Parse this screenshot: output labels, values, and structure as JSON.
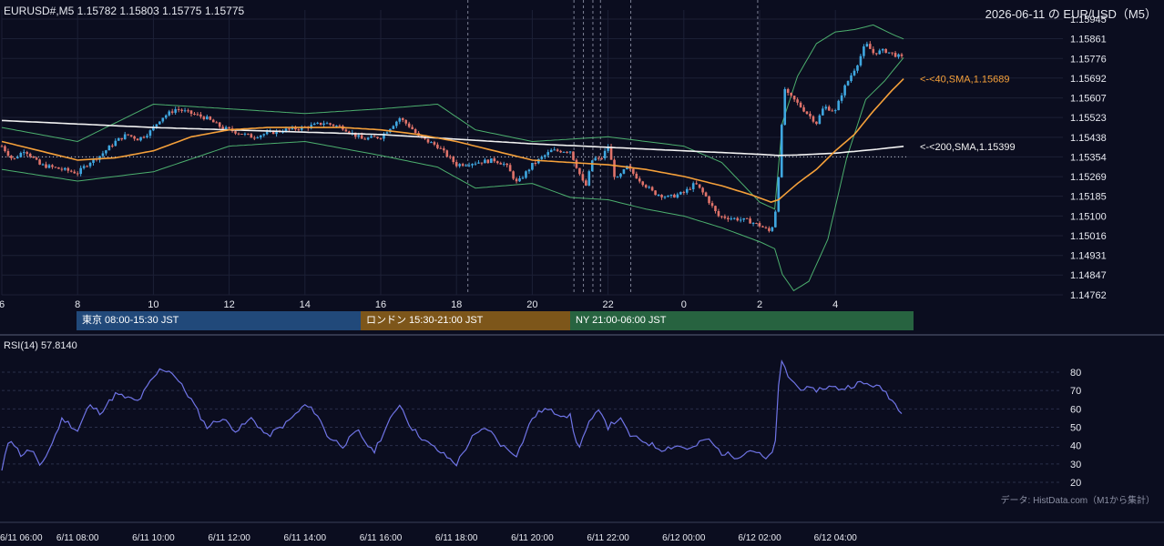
{
  "header": {
    "symbol_line": "EURUSD#,M5 1.15782 1.15803 1.15775 1.15775",
    "date_title": "2026-06-11 の EUR/USD（M5）"
  },
  "sessions": [
    {
      "label": "東京 08:00-15:30 JST",
      "color": "#21497a"
    },
    {
      "label": "ロンドン 15:30-21:00 JST",
      "color": "#7d561a"
    },
    {
      "label": "NY 21:00-06:00 JST",
      "color": "#276340"
    }
  ],
  "rsi_title": "RSI(14) 57.8140",
  "credit": "データ: HistData.com（M1から集計）",
  "colors": {
    "background": "#0b0d1f",
    "bull": "#3fa7e0",
    "bear": "#e0736a",
    "sma40": "#f5a03a",
    "sma200": "#f2f2f2",
    "bollinger": "#4caf6e",
    "rsi": "#6f74e6"
  },
  "chart_data": [
    {
      "type": "candlestick",
      "title": "",
      "ylim": [
        1.14762,
        1.15945
      ],
      "xlim": [
        6.0,
        5.8
      ],
      "y_ticks": [
        "1.15945",
        "1.15861",
        "1.15776",
        "1.15692",
        "1.15607",
        "1.15523",
        "1.15438",
        "1.15354",
        "1.15269",
        "1.15185",
        "1.15100",
        "1.15016",
        "1.14931",
        "1.14847",
        "1.14762"
      ],
      "x_tick_labels": [
        "6",
        "8",
        "10",
        "12",
        "14",
        "16",
        "18",
        "20",
        "22",
        "0",
        "2",
        "4"
      ],
      "reference_level": 1.15354,
      "annotations": [
        {
          "label": "<-<40,SMA,1.15689",
          "value": 1.15689,
          "series": "sma40"
        },
        {
          "label": "<-<200,SMA,1.15399",
          "value": 1.15399,
          "series": "sma200"
        }
      ],
      "anchors": [
        [
          6.0,
          1.154
        ],
        [
          6.3,
          1.1534
        ],
        [
          6.6,
          1.15385
        ],
        [
          7.0,
          1.1532
        ],
        [
          7.3,
          1.1531
        ],
        [
          7.6,
          1.153
        ],
        [
          8.0,
          1.15285
        ],
        [
          8.3,
          1.1533
        ],
        [
          8.6,
          1.1536
        ],
        [
          9.0,
          1.1542
        ],
        [
          9.3,
          1.1545
        ],
        [
          9.6,
          1.1543
        ],
        [
          9.9,
          1.1546
        ],
        [
          10.2,
          1.1552
        ],
        [
          10.6,
          1.1556
        ],
        [
          11.0,
          1.1554
        ],
        [
          11.4,
          1.1552
        ],
        [
          11.8,
          1.1548
        ],
        [
          12.2,
          1.1546
        ],
        [
          12.6,
          1.1544
        ],
        [
          13.0,
          1.15455
        ],
        [
          13.5,
          1.1547
        ],
        [
          14.0,
          1.1548
        ],
        [
          14.5,
          1.155
        ],
        [
          15.0,
          1.1548
        ],
        [
          15.5,
          1.1543
        ],
        [
          16.0,
          1.1544
        ],
        [
          16.5,
          1.1552
        ],
        [
          16.8,
          1.1548
        ],
        [
          17.0,
          1.1544
        ],
        [
          17.5,
          1.154
        ],
        [
          18.0,
          1.1532
        ],
        [
          18.5,
          1.1533
        ],
        [
          19.0,
          1.1534
        ],
        [
          19.3,
          1.1532
        ],
        [
          19.6,
          1.1524
        ],
        [
          20.0,
          1.1532
        ],
        [
          20.5,
          1.1538
        ],
        [
          21.0,
          1.1538
        ],
        [
          21.2,
          1.153
        ],
        [
          21.4,
          1.1522
        ],
        [
          21.6,
          1.1535
        ],
        [
          21.8,
          1.1534
        ],
        [
          22.0,
          1.154
        ],
        [
          22.2,
          1.1525
        ],
        [
          22.5,
          1.1531
        ],
        [
          22.8,
          1.1526
        ],
        [
          23.2,
          1.152
        ],
        [
          23.6,
          1.1518
        ],
        [
          24.0,
          1.152
        ],
        [
          24.3,
          1.1524
        ],
        [
          24.6,
          1.1518
        ],
        [
          24.9,
          1.151
        ],
        [
          25.3,
          1.1509
        ],
        [
          25.7,
          1.1508
        ],
        [
          26.0,
          1.1506
        ],
        [
          26.3,
          1.1503
        ],
        [
          26.45,
          1.1515
        ],
        [
          26.55,
          1.154
        ],
        [
          26.65,
          1.1565
        ],
        [
          26.75,
          1.1562
        ],
        [
          26.9,
          1.156
        ],
        [
          27.2,
          1.1555
        ],
        [
          27.5,
          1.155
        ],
        [
          27.7,
          1.1557
        ],
        [
          28.0,
          1.1555
        ],
        [
          28.2,
          1.1564
        ],
        [
          28.4,
          1.157
        ],
        [
          28.6,
          1.1576
        ],
        [
          28.8,
          1.1584
        ],
        [
          29.0,
          1.158
        ],
        [
          29.3,
          1.1581
        ],
        [
          29.6,
          1.1579
        ],
        [
          29.8,
          1.15775
        ]
      ],
      "sma40_anchors": [
        [
          6.0,
          1.1542
        ],
        [
          7.0,
          1.1538
        ],
        [
          8.0,
          1.1534
        ],
        [
          9.0,
          1.1535
        ],
        [
          10.0,
          1.1538
        ],
        [
          11.0,
          1.1544
        ],
        [
          12.0,
          1.1547
        ],
        [
          13.0,
          1.1548
        ],
        [
          14.0,
          1.1548
        ],
        [
          15.0,
          1.1548
        ],
        [
          16.0,
          1.1547
        ],
        [
          17.0,
          1.1545
        ],
        [
          18.0,
          1.1542
        ],
        [
          19.0,
          1.1538
        ],
        [
          20.0,
          1.1534
        ],
        [
          21.0,
          1.1533
        ],
        [
          22.0,
          1.1532
        ],
        [
          23.0,
          1.153
        ],
        [
          24.0,
          1.1527
        ],
        [
          25.0,
          1.1523
        ],
        [
          25.8,
          1.1519
        ],
        [
          26.3,
          1.1516
        ],
        [
          26.5,
          1.1517
        ],
        [
          27.0,
          1.1524
        ],
        [
          27.5,
          1.153
        ],
        [
          28.0,
          1.1538
        ],
        [
          28.5,
          1.1545
        ],
        [
          29.0,
          1.1555
        ],
        [
          29.5,
          1.1564
        ],
        [
          29.8,
          1.15689
        ]
      ],
      "sma200_anchors": [
        [
          6.0,
          1.1551
        ],
        [
          8.0,
          1.15495
        ],
        [
          10.0,
          1.1548
        ],
        [
          12.0,
          1.1547
        ],
        [
          14.0,
          1.1546
        ],
        [
          16.0,
          1.1545
        ],
        [
          18.0,
          1.1543
        ],
        [
          20.0,
          1.1541
        ],
        [
          22.0,
          1.15395
        ],
        [
          24.0,
          1.1538
        ],
        [
          26.0,
          1.15365
        ],
        [
          26.5,
          1.1536
        ],
        [
          27.0,
          1.15362
        ],
        [
          28.0,
          1.1537
        ],
        [
          29.0,
          1.15385
        ],
        [
          29.8,
          1.15399
        ]
      ],
      "bb_upper_anchors": [
        [
          6.0,
          1.1548
        ],
        [
          8.0,
          1.1542
        ],
        [
          10.0,
          1.1558
        ],
        [
          12.0,
          1.1556
        ],
        [
          14.0,
          1.1554
        ],
        [
          16.0,
          1.1556
        ],
        [
          17.5,
          1.1558
        ],
        [
          18.5,
          1.1547
        ],
        [
          20.0,
          1.1542
        ],
        [
          21.0,
          1.1543
        ],
        [
          22.0,
          1.1544
        ],
        [
          23.0,
          1.1542
        ],
        [
          24.0,
          1.154
        ],
        [
          25.0,
          1.1533
        ],
        [
          26.0,
          1.1516
        ],
        [
          26.4,
          1.1513
        ],
        [
          26.6,
          1.155
        ],
        [
          27.0,
          1.157
        ],
        [
          27.5,
          1.1584
        ],
        [
          28.0,
          1.1589
        ],
        [
          28.5,
          1.159
        ],
        [
          29.0,
          1.1592
        ],
        [
          29.5,
          1.1588
        ],
        [
          29.8,
          1.1586
        ]
      ],
      "bb_lower_anchors": [
        [
          6.0,
          1.153
        ],
        [
          8.0,
          1.1525
        ],
        [
          10.0,
          1.1529
        ],
        [
          12.0,
          1.154
        ],
        [
          14.0,
          1.1542
        ],
        [
          16.0,
          1.1536
        ],
        [
          17.5,
          1.1531
        ],
        [
          18.5,
          1.1522
        ],
        [
          20.0,
          1.1524
        ],
        [
          21.0,
          1.1518
        ],
        [
          22.0,
          1.1517
        ],
        [
          23.0,
          1.1513
        ],
        [
          24.0,
          1.151
        ],
        [
          25.0,
          1.1505
        ],
        [
          26.0,
          1.1499
        ],
        [
          26.4,
          1.1496
        ],
        [
          26.6,
          1.1485
        ],
        [
          26.9,
          1.1478
        ],
        [
          27.3,
          1.1482
        ],
        [
          27.8,
          1.15
        ],
        [
          28.3,
          1.1535
        ],
        [
          28.8,
          1.156
        ],
        [
          29.3,
          1.1568
        ],
        [
          29.8,
          1.1578
        ]
      ],
      "session_markers": [
        18.3,
        21.1,
        21.35,
        21.6,
        21.8,
        22.6,
        25.95
      ]
    },
    {
      "type": "line",
      "name": "RSI(14)",
      "title": "RSI(14) 57.8140",
      "ylim": [
        20,
        80
      ],
      "y_ticks": [
        20,
        30,
        40,
        50,
        60,
        70,
        80
      ],
      "x_tick_labels": [
        "6/11 06:00",
        "6/11 08:00",
        "6/11 10:00",
        "6/11 12:00",
        "6/11 14:00",
        "6/11 16:00",
        "6/11 18:00",
        "6/11 20:00",
        "6/11 22:00",
        "6/12 00:00",
        "6/12 02:00",
        "6/12 04:00"
      ],
      "anchors": [
        [
          6.0,
          26
        ],
        [
          6.2,
          45
        ],
        [
          6.5,
          35
        ],
        [
          6.8,
          38
        ],
        [
          7.0,
          28
        ],
        [
          7.3,
          40
        ],
        [
          7.6,
          55
        ],
        [
          8.0,
          48
        ],
        [
          8.3,
          62
        ],
        [
          8.6,
          58
        ],
        [
          9.0,
          68
        ],
        [
          9.3,
          66
        ],
        [
          9.6,
          64
        ],
        [
          9.9,
          74
        ],
        [
          10.2,
          82
        ],
        [
          10.5,
          80
        ],
        [
          11.0,
          65
        ],
        [
          11.4,
          50
        ],
        [
          11.8,
          55
        ],
        [
          12.2,
          48
        ],
        [
          12.6,
          55
        ],
        [
          13.0,
          45
        ],
        [
          13.5,
          52
        ],
        [
          14.0,
          62
        ],
        [
          14.3,
          58
        ],
        [
          14.6,
          45
        ],
        [
          15.0,
          40
        ],
        [
          15.4,
          48
        ],
        [
          15.8,
          36
        ],
        [
          16.2,
          52
        ],
        [
          16.5,
          63
        ],
        [
          16.8,
          50
        ],
        [
          17.2,
          42
        ],
        [
          17.6,
          36
        ],
        [
          18.0,
          30
        ],
        [
          18.4,
          44
        ],
        [
          18.8,
          50
        ],
        [
          19.2,
          40
        ],
        [
          19.6,
          35
        ],
        [
          20.0,
          55
        ],
        [
          20.3,
          60
        ],
        [
          20.6,
          58
        ],
        [
          21.0,
          56
        ],
        [
          21.2,
          38
        ],
        [
          21.5,
          52
        ],
        [
          21.8,
          60
        ],
        [
          22.0,
          50
        ],
        [
          22.3,
          55
        ],
        [
          22.6,
          45
        ],
        [
          23.0,
          42
        ],
        [
          23.4,
          38
        ],
        [
          23.8,
          40
        ],
        [
          24.2,
          38
        ],
        [
          24.6,
          44
        ],
        [
          25.0,
          36
        ],
        [
          25.4,
          34
        ],
        [
          25.8,
          38
        ],
        [
          26.2,
          32
        ],
        [
          26.4,
          38
        ],
        [
          26.55,
          88
        ],
        [
          26.75,
          78
        ],
        [
          27.0,
          72
        ],
        [
          27.4,
          70
        ],
        [
          27.8,
          72
        ],
        [
          28.2,
          71
        ],
        [
          28.6,
          74
        ],
        [
          29.0,
          73
        ],
        [
          29.3,
          70
        ],
        [
          29.6,
          62
        ],
        [
          29.8,
          57.8
        ]
      ]
    }
  ]
}
